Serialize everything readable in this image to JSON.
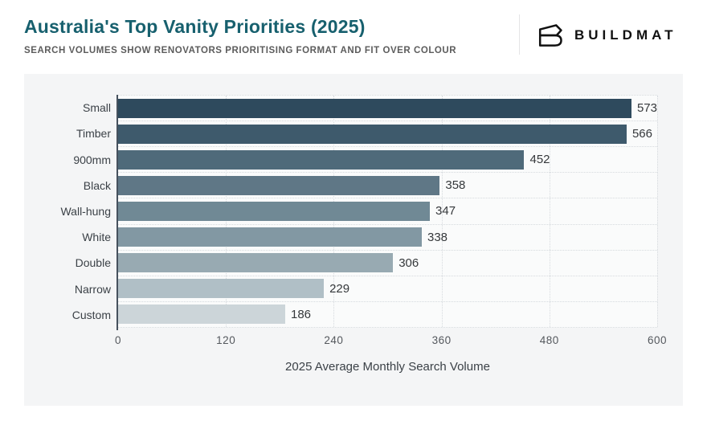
{
  "header": {
    "title": "Australia's Top Vanity Priorities (2025)",
    "subtitle": "SEARCH VOLUMES SHOW RENOVATORS PRIORITISING FORMAT AND FIT OVER COLOUR",
    "brand_name": "BUILDMAT"
  },
  "colors": {
    "title_teal": "#17606e",
    "panel_background": "#f4f5f6",
    "axis_line": "#47525e",
    "gridline": "#d6dade",
    "brand_black": "#111111"
  },
  "chart_data": {
    "type": "bar",
    "orientation": "horizontal",
    "title": "Australia's Top Vanity Priorities (2025)",
    "subtitle": "SEARCH VOLUMES SHOW RENOVATORS PRIORITISING FORMAT AND FIT OVER COLOUR",
    "categories": [
      "Small",
      "Timber",
      "900mm",
      "Black",
      "Wall-hung",
      "White",
      "Double",
      "Narrow",
      "Custom"
    ],
    "values": [
      573,
      566,
      452,
      358,
      347,
      338,
      306,
      229,
      186
    ],
    "bar_colors": [
      "#2e4a5d",
      "#3e5a6c",
      "#4f6a7a",
      "#5f7786",
      "#708995",
      "#8298a3",
      "#98aab2",
      "#b0bfc6",
      "#ccd5d9"
    ],
    "xlabel": "2025 Average Monthly Search Volume",
    "ylabel": "",
    "xlim": [
      0,
      600
    ],
    "xticks": [
      0,
      120,
      240,
      360,
      480,
      600
    ],
    "grid": true,
    "legend": false,
    "value_labels": true
  }
}
